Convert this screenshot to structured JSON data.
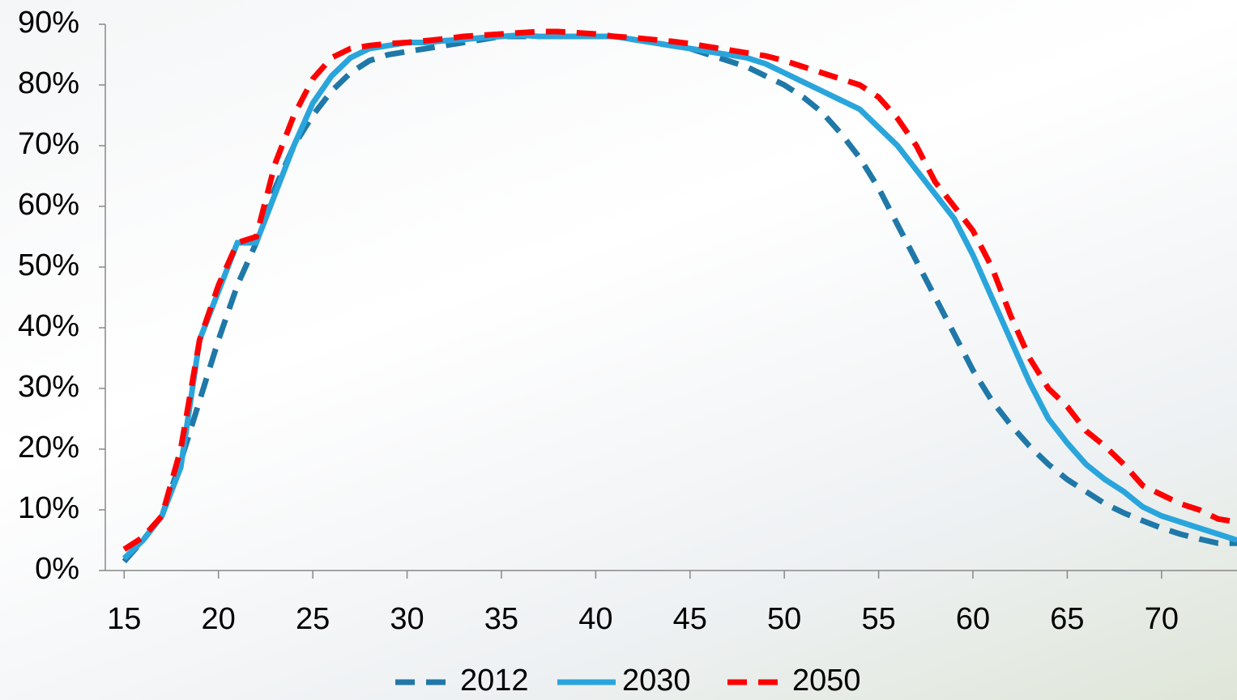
{
  "chart_data": {
    "type": "line",
    "x": [
      15,
      16,
      17,
      18,
      19,
      20,
      21,
      22,
      23,
      24,
      25,
      26,
      27,
      28,
      29,
      30,
      31,
      32,
      33,
      34,
      35,
      36,
      37,
      38,
      39,
      40,
      41,
      42,
      43,
      44,
      45,
      46,
      47,
      48,
      49,
      50,
      51,
      52,
      53,
      54,
      55,
      56,
      57,
      58,
      59,
      60,
      61,
      62,
      63,
      64,
      65,
      66,
      67,
      68,
      69,
      70,
      71,
      72,
      73,
      74
    ],
    "xlim": [
      14,
      74
    ],
    "xticks": [
      15,
      20,
      25,
      30,
      35,
      40,
      45,
      50,
      55,
      60,
      65,
      70
    ],
    "ylim": [
      0,
      90
    ],
    "yticks": [
      {
        "value": 0,
        "label": "0%"
      },
      {
        "value": 10,
        "label": "10%"
      },
      {
        "value": 20,
        "label": "20%"
      },
      {
        "value": 30,
        "label": "30%"
      },
      {
        "value": 40,
        "label": "40%"
      },
      {
        "value": 50,
        "label": "50%"
      },
      {
        "value": 60,
        "label": "60%"
      },
      {
        "value": 70,
        "label": "70%"
      },
      {
        "value": 80,
        "label": "80%"
      },
      {
        "value": 90,
        "label": "90%"
      }
    ],
    "legend": "bottom",
    "series": [
      {
        "name": "2012",
        "color": "#1f78a8",
        "dash": "dashed",
        "values": [
          1.5,
          5,
          9,
          18,
          28,
          38,
          47,
          54,
          63,
          70,
          75,
          79,
          82,
          84,
          85,
          85.5,
          86,
          86.5,
          87,
          87.5,
          88,
          88,
          88,
          88,
          88,
          88,
          88,
          87.5,
          87,
          86.5,
          86,
          85,
          84,
          83,
          81.5,
          80,
          78,
          75.5,
          72,
          68,
          63,
          57,
          51,
          45,
          39,
          33,
          28,
          24,
          20.5,
          17.5,
          15,
          13,
          11,
          9.5,
          8.2,
          7,
          6,
          5.2,
          4.5,
          4.5
        ]
      },
      {
        "name": "2030",
        "color": "#2aa5dc",
        "dash": "solid",
        "values": [
          2,
          5,
          9,
          17,
          38,
          46,
          54,
          54,
          62,
          70,
          77,
          81.5,
          84.5,
          86,
          86.5,
          87,
          87,
          87.3,
          87.5,
          87.8,
          88,
          88.2,
          88,
          88,
          88,
          88,
          88,
          87.5,
          87,
          86.5,
          86,
          85.5,
          85,
          84.5,
          83.5,
          82,
          80.5,
          79,
          77.5,
          76,
          73,
          70,
          66,
          62,
          58,
          52,
          45,
          38,
          31,
          25,
          21,
          17.5,
          15,
          13,
          10.5,
          9,
          8,
          7,
          6,
          5
        ]
      },
      {
        "name": "2050",
        "color": "#ff0000",
        "dash": "dashed",
        "values": [
          3.5,
          5.5,
          9,
          20,
          38,
          47,
          54,
          55,
          67,
          75,
          81,
          84.5,
          86,
          86.5,
          86.8,
          87,
          87.3,
          87.6,
          88,
          88.2,
          88.4,
          88.6,
          88.8,
          88.8,
          88.6,
          88.4,
          88,
          87.8,
          87.5,
          87.2,
          86.8,
          86.3,
          85.8,
          85.3,
          84.8,
          84,
          83,
          82,
          81,
          80,
          78,
          74.5,
          70,
          64,
          60,
          56,
          50,
          42,
          35,
          30,
          27,
          23,
          20.5,
          17.5,
          14,
          12.5,
          11,
          10,
          8.5,
          8
        ]
      }
    ]
  }
}
